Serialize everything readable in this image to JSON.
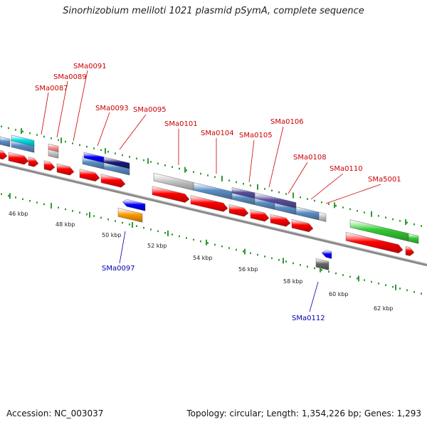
{
  "title": "Sinorhizobium meliloti 1021 plasmid pSymA, complete sequence",
  "accession": "Accession: NC_003037",
  "summary": "Topology: circular; Length: 1,354,226 bp; Genes: 1,293",
  "colors": {
    "top_label": "#cc0000",
    "bottom_label": "#0000aa",
    "backbone": "#8a8a8a",
    "tick_dots": "#339933",
    "cds_red": "#ff0000",
    "blue_gene": "#0000ff",
    "orange_gene": "#ff9900",
    "steel_blue": "#5b8fc7",
    "slate_blue": "#5a4fa0",
    "grey_gene": "#c8c8c8",
    "green_gene": "#33cc33"
  },
  "top_labels": [
    "SMa0087",
    "SMa0089",
    "SMa0091",
    "SMa0093",
    "SMa0095",
    "SMa0101",
    "SMa0104",
    "SMa0105",
    "SMa0106",
    "SMa0108",
    "SMa0110",
    "SMa5001"
  ],
  "bottom_labels": [
    "SMa0097",
    "SMa0112"
  ],
  "scale_labels": [
    "46 kbp",
    "48 kbp",
    "50 kbp",
    "52 kbp",
    "54 kbp",
    "56 kbp",
    "58 kbp",
    "60 kbp",
    "62 kbp"
  ]
}
